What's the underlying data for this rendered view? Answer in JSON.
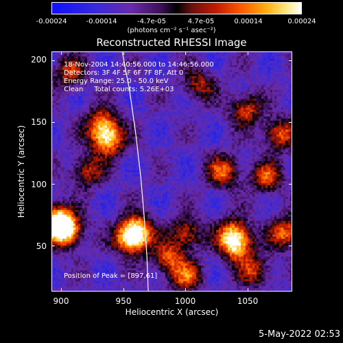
{
  "colorbar": {
    "ticks": [
      "-0.00024",
      "-0.00014",
      "-4.7e-05",
      "4.7e-05",
      "0.00014",
      "0.00024"
    ],
    "units": "(photons cm⁻² s⁻¹ asec⁻²)",
    "min": -0.00024,
    "max": 0.00024
  },
  "info": {
    "time": "18-Nov-2004 14:40:56.000 to 14:46:56.000",
    "detectors": "Detectors: 3F 4F 5F 6F 7F 8F, Att 0",
    "energy": "Energy Range: 25.0 - 50.0 keV",
    "clean": "Clean     Total counts: 5.26E+03",
    "peak": "Position of Peak = [897,61]"
  },
  "footer": {
    "date": "5-May-2022 02:53"
  },
  "chart_data": {
    "type": "heatmap",
    "title": "Reconstructed RHESSI Image",
    "xlabel": "Heliocentric X (arcsec)",
    "ylabel": "Heliocentric Y (arcsec)",
    "xlim": [
      892,
      1086
    ],
    "ylim": [
      13,
      207
    ],
    "xticks": [
      900,
      950,
      1000,
      1050
    ],
    "yticks": [
      50,
      100,
      150,
      200
    ],
    "peak": [
      897,
      61
    ],
    "limb_curve": {
      "x": [
        949,
        955,
        960,
        964,
        967,
        969,
        970
      ],
      "y": [
        207,
        175,
        140,
        105,
        70,
        40,
        13
      ]
    },
    "hot_spots": [
      {
        "x": 903,
        "y": 62,
        "intensity": 0.00024
      },
      {
        "x": 895,
        "y": 70,
        "intensity": 0.00022
      },
      {
        "x": 932,
        "y": 148,
        "intensity": 0.00014
      },
      {
        "x": 937,
        "y": 135,
        "intensity": 0.00018
      },
      {
        "x": 960,
        "y": 62,
        "intensity": 0.00018
      },
      {
        "x": 955,
        "y": 55,
        "intensity": 0.00016
      },
      {
        "x": 1040,
        "y": 50,
        "intensity": 0.00016
      },
      {
        "x": 1038,
        "y": 60,
        "intensity": 0.00012
      },
      {
        "x": 1030,
        "y": 110,
        "intensity": 0.00012
      },
      {
        "x": 1065,
        "y": 105,
        "intensity": 0.0001
      },
      {
        "x": 1075,
        "y": 140,
        "intensity": 0.00012
      },
      {
        "x": 1048,
        "y": 160,
        "intensity": 0.0001
      },
      {
        "x": 1080,
        "y": 60,
        "intensity": 0.00014
      },
      {
        "x": 985,
        "y": 40,
        "intensity": 0.0001
      },
      {
        "x": 1000,
        "y": 60,
        "intensity": 0.0001
      },
      {
        "x": 905,
        "y": 190,
        "intensity": 8e-05
      },
      {
        "x": 1010,
        "y": 180,
        "intensity": 6e-05
      },
      {
        "x": 1055,
        "y": 30,
        "intensity": 8e-05
      },
      {
        "x": 920,
        "y": 110,
        "intensity": 8e-05
      },
      {
        "x": 1000,
        "y": 25,
        "intensity": 0.0001
      }
    ]
  }
}
